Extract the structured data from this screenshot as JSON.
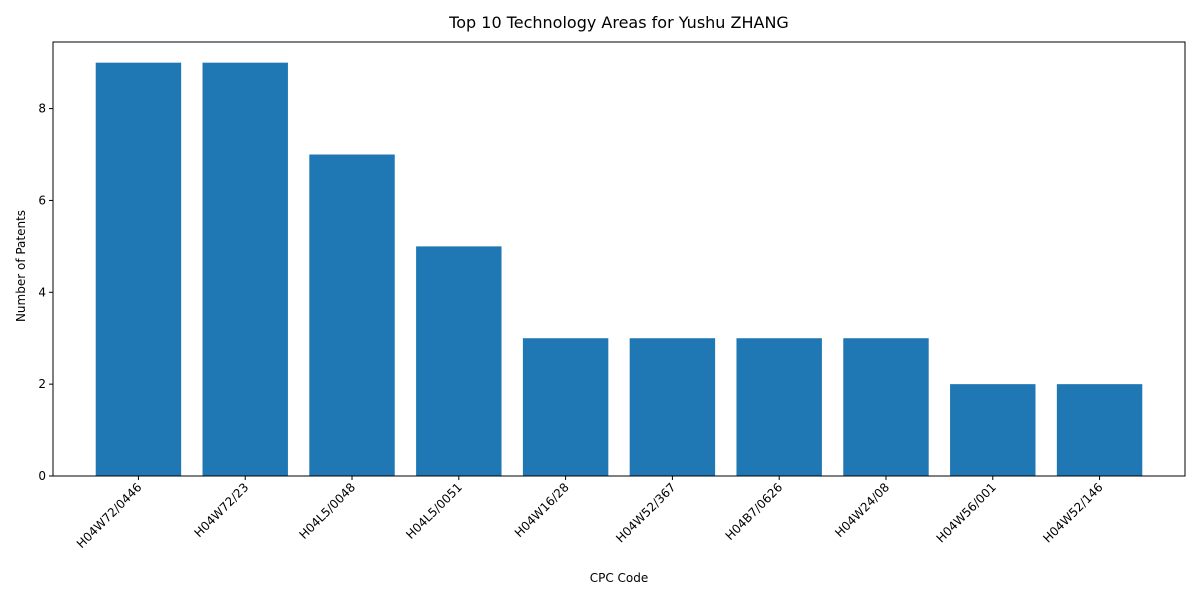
{
  "chart_data": {
    "type": "bar",
    "title": "Top 10 Technology Areas for Yushu ZHANG",
    "xlabel": "CPC Code",
    "ylabel": "Number of Patents",
    "categories": [
      "H04W72/0446",
      "H04W72/23",
      "H04L5/0048",
      "H04L5/0051",
      "H04W16/28",
      "H04W52/367",
      "H04B7/0626",
      "H04W24/08",
      "H04W56/001",
      "H04W52/146"
    ],
    "values": [
      9,
      9,
      7,
      5,
      3,
      3,
      3,
      3,
      2,
      2
    ],
    "ylim": [
      0,
      9.45
    ],
    "yticks": [
      0,
      2,
      4,
      6,
      8
    ],
    "grid": false,
    "bar_color": "#1f77b4"
  }
}
